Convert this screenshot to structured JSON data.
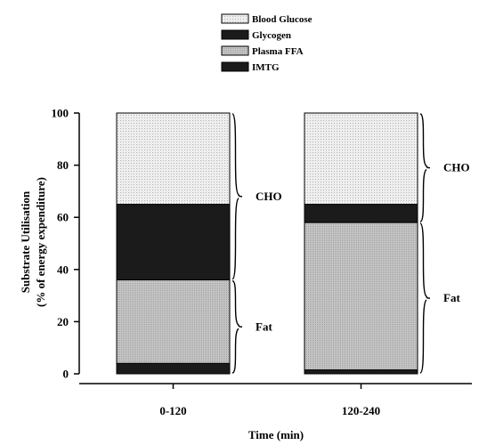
{
  "chart_data": {
    "type": "bar",
    "stacked": true,
    "categories": [
      "0-120",
      "120-240"
    ],
    "series": [
      {
        "name": "IMTG",
        "values": [
          4,
          1.5
        ],
        "color": "#1a1a1a"
      },
      {
        "name": "Plasma FFA",
        "values": [
          32,
          56.5
        ],
        "color": "#bdbdbd"
      },
      {
        "name": "Glycogen",
        "values": [
          29,
          7
        ],
        "color": "#1a1a1a"
      },
      {
        "name": "Blood Glucose",
        "values": [
          35,
          35
        ],
        "color": "#e3e3e3"
      }
    ],
    "legend_order": [
      "Blood Glucose",
      "Glycogen",
      "Plasma FFA",
      "IMTG"
    ],
    "xlabel": "Time (min)",
    "ylabel_line1": "Substrate Utilisation",
    "ylabel_line2": "(% of energy expenditure)",
    "ylim": [
      0,
      100
    ],
    "yticks": [
      "0",
      "20",
      "40",
      "60",
      "80",
      "100"
    ],
    "annotations": {
      "bar1": [
        {
          "label": "CHO",
          "from": 36,
          "to": 100
        },
        {
          "label": "Fat",
          "from": 0,
          "to": 36
        }
      ],
      "bar2": [
        {
          "label": "CHO",
          "from": 58,
          "to": 100
        },
        {
          "label": "Fat",
          "from": 0,
          "to": 58
        }
      ]
    },
    "legend_placement": "top-center",
    "grid": false
  }
}
